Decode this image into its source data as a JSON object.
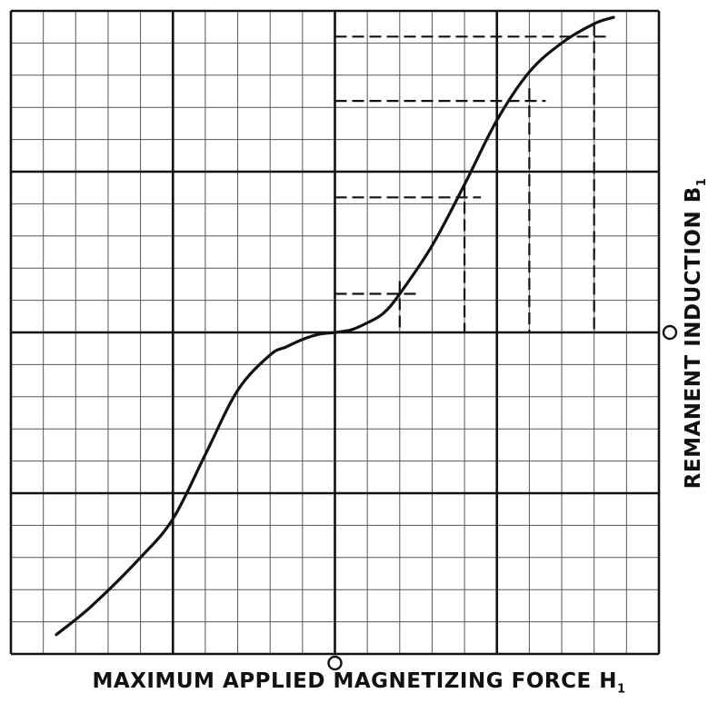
{
  "chart_data": {
    "type": "line",
    "xlabel_main": "MAXIMUM  APPLIED MAGNETIZING FORCE",
    "xlabel_symbol": "H",
    "xlabel_subscript": "1",
    "ylabel_main": "REMANENT  INDUCTION",
    "ylabel_symbol": "B",
    "ylabel_subscript": "1",
    "origin_label": "O",
    "xlim": [
      -10,
      10
    ],
    "ylim": [
      -10,
      10
    ],
    "grid": true,
    "minor_divisions": 20,
    "major_divisions": 4,
    "series": [
      {
        "x": [
          -8.6,
          -7.5,
          -6.0,
          -5.0,
          -4.0,
          -3.0,
          -2.0,
          -1.5,
          -1.0,
          -0.5,
          0.0,
          0.5,
          1.0,
          1.5,
          2.0,
          3.0,
          4.0,
          5.0,
          6.0,
          7.0,
          8.0,
          8.6
        ],
        "y": [
          -9.4,
          -8.5,
          -7.0,
          -5.8,
          -3.8,
          -1.8,
          -0.7,
          -0.45,
          -0.22,
          -0.06,
          0.0,
          0.08,
          0.3,
          0.6,
          1.2,
          2.7,
          4.6,
          6.6,
          8.1,
          9.0,
          9.6,
          9.8
        ]
      }
    ],
    "guide_points": [
      {
        "x": 2.0,
        "y": 1.2
      },
      {
        "x": 4.0,
        "y": 4.2
      },
      {
        "x": 6.0,
        "y": 7.2
      },
      {
        "x": 8.0,
        "y": 9.2
      }
    ]
  }
}
